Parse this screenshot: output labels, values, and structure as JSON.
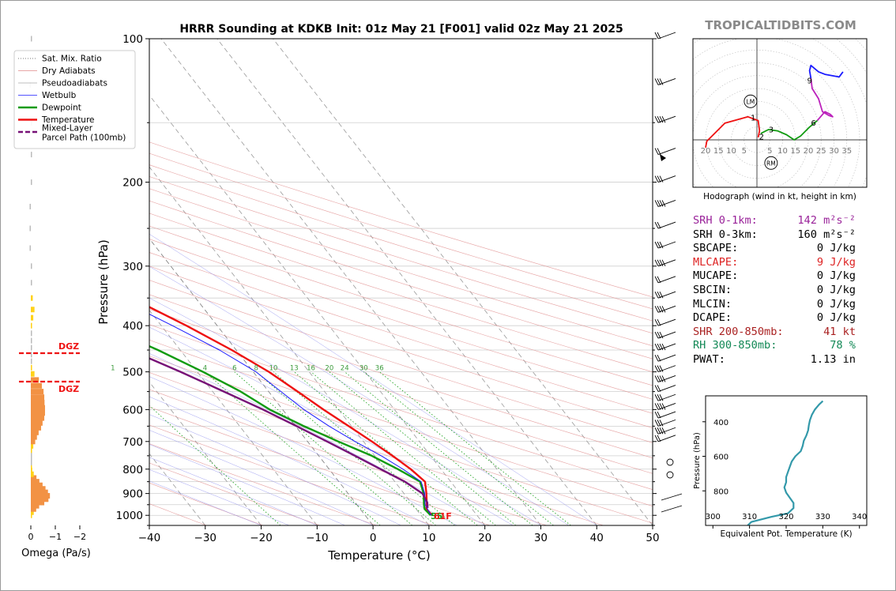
{
  "title": "HRRR Sounding at KDKB Init: 01z May 21 [F001] valid 02z May 21 2025",
  "brand": "TROPICALTIDBITS.COM",
  "skewt": {
    "xlabel": "Temperature (°C)",
    "ylabel": "Pressure (hPa)",
    "xticks": [
      "−40",
      "−30",
      "−20",
      "−10",
      "0",
      "10",
      "20",
      "30",
      "40",
      "50"
    ],
    "yticks": [
      "100",
      "200",
      "300",
      "400",
      "500",
      "600",
      "700",
      "800",
      "900",
      "1000"
    ],
    "surface_dewpoint_label": "55",
    "surface_temp_label": "61F",
    "mixing_ratio_labels": [
      "1",
      "4",
      "6",
      "8",
      "10",
      "13",
      "16",
      "20",
      "24",
      "30",
      "36"
    ],
    "dgz_label": "DGZ"
  },
  "legend": {
    "items": [
      {
        "label": "Sat. Mix. Ratio",
        "color": "#7a7a7a",
        "style": "dotted"
      },
      {
        "label": "Dry Adiabats",
        "color": "#e08a8a",
        "style": "solid-thin"
      },
      {
        "label": "Pseudoadiabats",
        "color": "#aaaaaa",
        "style": "solid-thin"
      },
      {
        "label": "Wetbulb",
        "color": "#1a1aff",
        "style": "solid-thin"
      },
      {
        "label": "Dewpoint",
        "color": "#119b11",
        "style": "solid-thick"
      },
      {
        "label": "Temperature",
        "color": "#ee1111",
        "style": "solid-thick"
      },
      {
        "label": "Mixed-Layer\nParcel Path (100mb)",
        "color": "#771177",
        "style": "dashed-thick"
      }
    ]
  },
  "omega": {
    "xlabel": "Omega (Pa/s)",
    "xticks": [
      "0",
      "−1",
      "−2"
    ]
  },
  "hodograph": {
    "caption": "Hodograph (wind in kt, height in km)",
    "ring_labels_left": [
      "20",
      "15",
      "10",
      "5"
    ],
    "ring_labels_right": [
      "5",
      "10",
      "15",
      "20",
      "25",
      "30",
      "35"
    ],
    "height_labels": [
      "1",
      "2",
      "3",
      "6",
      "9"
    ],
    "lm_label": "LM",
    "rm_label": "RM"
  },
  "stats": [
    {
      "label": "SRH 0-1km:",
      "value": "142 m²s⁻²",
      "color": "#992299"
    },
    {
      "label": "SRH 0-3km:",
      "value": "160 m²s⁻²",
      "color": "#000000"
    },
    {
      "label": "SBCAPE:",
      "value": "0 J/kg",
      "color": "#000000"
    },
    {
      "label": "MLCAPE:",
      "value": "9 J/kg",
      "color": "#dd2222"
    },
    {
      "label": "MUCAPE:",
      "value": "0 J/kg",
      "color": "#000000"
    },
    {
      "label": "SBCIN:",
      "value": "0 J/kg",
      "color": "#000000"
    },
    {
      "label": "MLCIN:",
      "value": "0 J/kg",
      "color": "#000000"
    },
    {
      "label": "DCAPE:",
      "value": "0 J/kg",
      "color": "#000000"
    },
    {
      "label": "SHR 200-850mb:",
      "value": "41 kt",
      "color": "#aa2222"
    },
    {
      "label": "RH 300-850mb:",
      "value": "78 %",
      "color": "#118855"
    },
    {
      "label": "PWAT:",
      "value": "1.13 in",
      "color": "#000000"
    }
  ],
  "theta_e_panel": {
    "ylabel": "Pressure (hPa)",
    "xlabel": "Equivalent Pot. Temperature (K)",
    "xticks": [
      "300",
      "310",
      "320",
      "330",
      "340"
    ],
    "yticks": [
      "400",
      "600",
      "800"
    ]
  },
  "chart_data": [
    {
      "type": "line",
      "title": "HRRR Sounding at KDKB Init: 01z May 21 [F001] valid 02z May 21 2025",
      "xlabel": "Temperature (°C)",
      "ylabel": "Pressure (hPa)",
      "xlim": [
        -40,
        50
      ],
      "ylim": [
        1050,
        100
      ],
      "yscale": "log",
      "skew": "skew-T",
      "series": [
        {
          "name": "Temperature",
          "color": "#ee1111",
          "points": [
            [
              1000,
              12.0
            ],
            [
              970,
              11.8
            ],
            [
              950,
              12.5
            ],
            [
              900,
              14.0
            ],
            [
              850,
              15.4
            ],
            [
              800,
              14.6
            ],
            [
              750,
              13.2
            ],
            [
              700,
              11.5
            ],
            [
              650,
              9.5
            ],
            [
              600,
              7.3
            ],
            [
              550,
              5.2
            ],
            [
              500,
              2.8
            ],
            [
              450,
              -0.8
            ],
            [
              400,
              -5.5
            ],
            [
              350,
              -11.5
            ],
            [
              300,
              -18.0
            ],
            [
              275,
              -21.5
            ],
            [
              250,
              -22.8
            ],
            [
              225,
              -23.5
            ],
            [
              200,
              -25.5
            ],
            [
              175,
              -30.0
            ],
            [
              150,
              -36.0
            ],
            [
              125,
              -46.0
            ],
            [
              100,
              -57.5
            ]
          ]
        },
        {
          "name": "Dewpoint",
          "color": "#119b11",
          "points": [
            [
              1000,
              11.7
            ],
            [
              970,
              11.5
            ],
            [
              950,
              12.0
            ],
            [
              900,
              13.5
            ],
            [
              850,
              14.5
            ],
            [
              800,
              12.3
            ],
            [
              750,
              9.5
            ],
            [
              700,
              5.5
            ],
            [
              650,
              1.5
            ],
            [
              600,
              -2.3
            ],
            [
              550,
              -5.0
            ],
            [
              500,
              -9.0
            ],
            [
              450,
              -14.0
            ],
            [
              400,
              -20.5
            ],
            [
              350,
              -28.0
            ],
            [
              300,
              -35.0
            ],
            [
              275,
              -38.5
            ],
            [
              250,
              -44.0
            ],
            [
              225,
              -60.0
            ],
            [
              200,
              -58.0
            ],
            [
              175,
              -65.0
            ],
            [
              150,
              -76.0
            ],
            [
              125,
              -82.0
            ],
            [
              100,
              -83.0
            ]
          ]
        },
        {
          "name": "Wetbulb",
          "color": "#1a1aff",
          "points": [
            [
              1000,
              11.8
            ],
            [
              950,
              12.2
            ],
            [
              900,
              13.7
            ],
            [
              850,
              14.7
            ],
            [
              800,
              13.2
            ],
            [
              750,
              11.2
            ],
            [
              700,
              8.5
            ],
            [
              650,
              6.0
            ],
            [
              600,
              3.8
            ],
            [
              550,
              2.2
            ],
            [
              500,
              0.5
            ],
            [
              450,
              -3.0
            ],
            [
              400,
              -8.0
            ],
            [
              350,
              -14.0
            ],
            [
              300,
              -21.0
            ],
            [
              275,
              -25.0
            ],
            [
              250,
              -26.5
            ],
            [
              225,
              -28.0
            ],
            [
              200,
              -30.0
            ],
            [
              175,
              -34.0
            ],
            [
              150,
              -40.0
            ],
            [
              125,
              -48.0
            ],
            [
              100,
              -59.0
            ]
          ]
        },
        {
          "name": "Mixed-Layer Parcel Path (100mb)",
          "color": "#771177",
          "points": [
            [
              965,
              12.2
            ],
            [
              940,
              12.9
            ],
            [
              900,
              13.3
            ],
            [
              850,
              11.8
            ],
            [
              800,
              9.2
            ],
            [
              750,
              6.5
            ],
            [
              700,
              3.5
            ],
            [
              650,
              0.2
            ],
            [
              600,
              -3.5
            ],
            [
              550,
              -8.0
            ],
            [
              500,
              -13.0
            ],
            [
              450,
              -19.0
            ],
            [
              400,
              -26.0
            ],
            [
              350,
              -34.5
            ],
            [
              300,
              -44.5
            ],
            [
              250,
              -56.5
            ],
            [
              200,
              -70.0
            ],
            [
              150,
              -86.0
            ],
            [
              140,
              -89.5
            ]
          ]
        }
      ]
    },
    {
      "type": "bar",
      "title": "",
      "xlabel": "Omega (Pa/s)",
      "ylabel": "",
      "xlim": [
        0.2,
        -2.5
      ],
      "orientation": "horizontal",
      "levels_hPa": [
        1000,
        985,
        970,
        955,
        940,
        925,
        910,
        895,
        880,
        865,
        850,
        835,
        820,
        805,
        790,
        775,
        760,
        745,
        730,
        715,
        700,
        685,
        670,
        655,
        640,
        625,
        610,
        595,
        580,
        565,
        550,
        535,
        520,
        505,
        490,
        475,
        460,
        445,
        430,
        415,
        400,
        385,
        370,
        350,
        325,
        300,
        275,
        250,
        225,
        200,
        175,
        150,
        125,
        100
      ],
      "values": [
        -0.05,
        -0.12,
        -0.22,
        -0.34,
        -0.55,
        -0.72,
        -0.78,
        -0.7,
        -0.6,
        -0.48,
        -0.35,
        -0.23,
        -0.12,
        -0.06,
        -0.03,
        -0.02,
        -0.01,
        -0.02,
        -0.05,
        -0.1,
        -0.18,
        -0.25,
        -0.32,
        -0.42,
        -0.48,
        -0.55,
        -0.58,
        -0.58,
        -0.56,
        -0.55,
        -0.52,
        -0.45,
        -0.33,
        -0.15,
        -0.05,
        -0.01,
        0.0,
        0.0,
        0.0,
        -0.02,
        -0.05,
        -0.1,
        -0.15,
        -0.08,
        -0.02,
        0.0,
        0.01,
        0.02,
        0.02,
        0.0,
        -0.01,
        0.0,
        0.01,
        -0.01
      ]
    },
    {
      "type": "line",
      "title": "Hodograph (wind in kt, height in km)",
      "xlabel": "",
      "ylabel": "",
      "xlim": [
        -25,
        42
      ],
      "ylim": [
        -22,
        40
      ],
      "series": [
        {
          "name": "0-1km",
          "color": "#ee1111",
          "points": [
            [
              -20,
              -3
            ],
            [
              -19.5,
              -0.5
            ],
            [
              -17,
              2
            ],
            [
              -12.5,
              6.5
            ],
            [
              -3.5,
              9
            ],
            [
              0.5,
              7.5
            ],
            [
              1,
              3.5
            ],
            [
              0.5,
              1
            ]
          ]
        },
        {
          "name": "1-3km",
          "color": "#119b11",
          "points": [
            [
              1.5,
              2.5
            ],
            [
              4.5,
              4
            ],
            [
              8,
              3.5
            ],
            [
              11.5,
              2
            ],
            [
              14.5,
              0
            ],
            [
              17,
              1.5
            ],
            [
              20.5,
              5
            ],
            [
              23.5,
              7.5
            ]
          ]
        },
        {
          "name": "3-6km",
          "color": "#bb22bb",
          "points": [
            [
              23.5,
              7.5
            ],
            [
              26.5,
              11
            ],
            [
              28.5,
              10
            ],
            [
              29.5,
              9
            ],
            [
              28,
              9.5
            ],
            [
              25.5,
              11
            ],
            [
              24,
              16
            ],
            [
              21.5,
              20
            ],
            [
              21,
              24
            ]
          ]
        },
        {
          "name": "6-9km",
          "color": "#1a1aff",
          "points": [
            [
              21,
              24
            ],
            [
              20.5,
              27
            ],
            [
              21,
              29
            ],
            [
              24,
              26.5
            ],
            [
              26.5,
              25.5
            ],
            [
              32,
              24.5
            ],
            [
              33.5,
              26.5
            ]
          ]
        }
      ],
      "storm_motion": {
        "LM": [
          -2.5,
          15
        ],
        "RM": [
          5.5,
          -9
        ]
      }
    },
    {
      "type": "line",
      "title": "",
      "xlabel": "Equivalent Pot. Temperature (K)",
      "ylabel": "Pressure (hPa)",
      "xlim": [
        298,
        342
      ],
      "ylim": [
        1000,
        250
      ],
      "series": [
        {
          "name": "Equivalent Pot. Temperature",
          "color": "#3399aa",
          "points": [
            [
              1000,
              309.5
            ],
            [
              980,
              310.5
            ],
            [
              950,
              316
            ],
            [
              930,
              320.5
            ],
            [
              900,
              322
            ],
            [
              870,
              322
            ],
            [
              840,
              321
            ],
            [
              810,
              320
            ],
            [
              780,
              319.5
            ],
            [
              750,
              320
            ],
            [
              720,
              320
            ],
            [
              690,
              320.5
            ],
            [
              660,
              321
            ],
            [
              630,
              321.5
            ],
            [
              600,
              322.5
            ],
            [
              570,
              324
            ],
            [
              540,
              324.5
            ],
            [
              510,
              324.8
            ],
            [
              480,
              325.5
            ],
            [
              450,
              326
            ],
            [
              420,
              326.2
            ],
            [
              390,
              326.5
            ],
            [
              360,
              327
            ],
            [
              330,
              327.8
            ],
            [
              300,
              329
            ],
            [
              280,
              330
            ]
          ]
        }
      ]
    }
  ]
}
